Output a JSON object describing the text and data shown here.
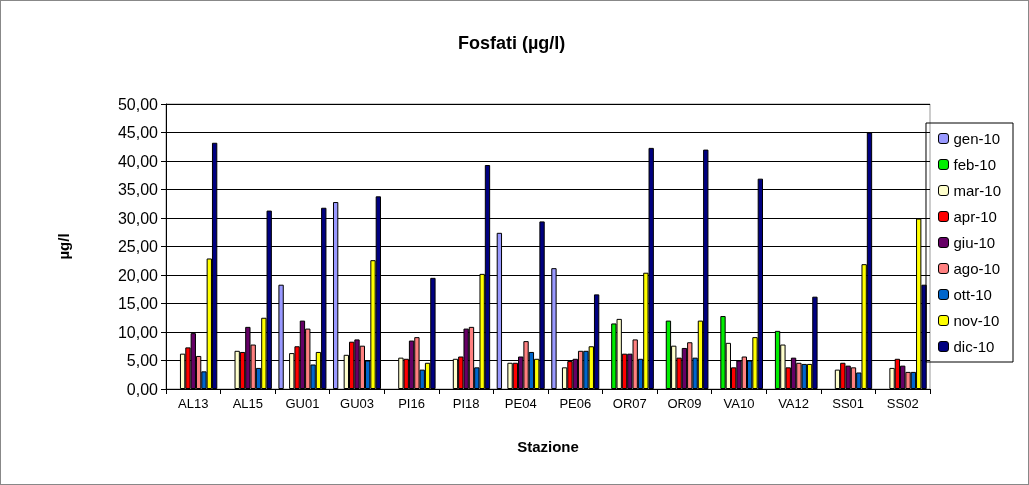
{
  "chart_data": {
    "type": "bar",
    "title": "Fosfati (µg/l)",
    "xlabel": "Stazione",
    "ylabel": "µg/l",
    "categories": [
      "AL13",
      "AL15",
      "GU01",
      "GU03",
      "PI16",
      "PI18",
      "PE04",
      "PE06",
      "OR07",
      "OR09",
      "VA10",
      "VA12",
      "SS01",
      "SS02"
    ],
    "series": [
      {
        "name": "gen-10",
        "color": "#9999ff",
        "values": [
          null,
          null,
          18.3,
          32.8,
          null,
          null,
          27.4,
          21.2,
          null,
          null,
          null,
          null,
          null,
          null
        ]
      },
      {
        "name": "feb-10",
        "color": "#00ee00",
        "values": [
          null,
          null,
          null,
          null,
          null,
          null,
          null,
          null,
          11.5,
          12.0,
          12.8,
          10.2,
          null,
          null
        ]
      },
      {
        "name": "mar-10",
        "color": "#ffffcc",
        "values": [
          6.2,
          6.7,
          6.3,
          6.0,
          5.5,
          5.3,
          4.6,
          3.8,
          12.3,
          7.6,
          8.1,
          7.8,
          3.4,
          3.7
        ]
      },
      {
        "name": "apr-10",
        "color": "#ff0000",
        "values": [
          7.3,
          6.5,
          7.5,
          8.3,
          5.3,
          5.7,
          4.6,
          4.9,
          6.2,
          5.5,
          3.8,
          3.8,
          4.6,
          5.3
        ]
      },
      {
        "name": "giu-10",
        "color": "#660066",
        "values": [
          9.8,
          10.9,
          12.0,
          8.7,
          8.5,
          10.6,
          5.7,
          5.3,
          6.2,
          7.2,
          5.0,
          5.5,
          4.1,
          4.1
        ]
      },
      {
        "name": "ago-10",
        "color": "#ff8080",
        "values": [
          5.8,
          7.8,
          10.6,
          7.6,
          9.1,
          10.9,
          8.4,
          6.7,
          8.7,
          8.2,
          5.7,
          4.6,
          3.8,
          3.0
        ]
      },
      {
        "name": "ott-10",
        "color": "#0066cc",
        "values": [
          3.1,
          3.7,
          4.3,
          5.0,
          3.4,
          3.8,
          6.5,
          6.7,
          5.3,
          5.5,
          5.0,
          4.4,
          2.9,
          3.0
        ]
      },
      {
        "name": "nov-10",
        "color": "#ffff00",
        "values": [
          22.9,
          12.5,
          6.5,
          22.6,
          4.6,
          20.2,
          5.3,
          7.5,
          20.4,
          12.0,
          9.1,
          4.4,
          21.9,
          29.9
        ]
      },
      {
        "name": "dic-10",
        "color": "#000080",
        "values": [
          43.2,
          31.3,
          31.8,
          33.8,
          19.5,
          39.3,
          29.4,
          16.6,
          42.3,
          42.0,
          36.9,
          16.2,
          45.0,
          18.3
        ]
      }
    ],
    "ylim": [
      0,
      50
    ],
    "yticks": [
      {
        "value": 0,
        "label": "0,00"
      },
      {
        "value": 5,
        "label": "5,00"
      },
      {
        "value": 10,
        "label": "10,00"
      },
      {
        "value": 15,
        "label": "15,00"
      },
      {
        "value": 20,
        "label": "20,00"
      },
      {
        "value": 25,
        "label": "25,00"
      },
      {
        "value": 30,
        "label": "30,00"
      },
      {
        "value": 35,
        "label": "35,00"
      },
      {
        "value": 40,
        "label": "40,00"
      },
      {
        "value": 45,
        "label": "45,00"
      },
      {
        "value": 50,
        "label": "50,00"
      }
    ],
    "grid": "y",
    "legend": "right"
  }
}
